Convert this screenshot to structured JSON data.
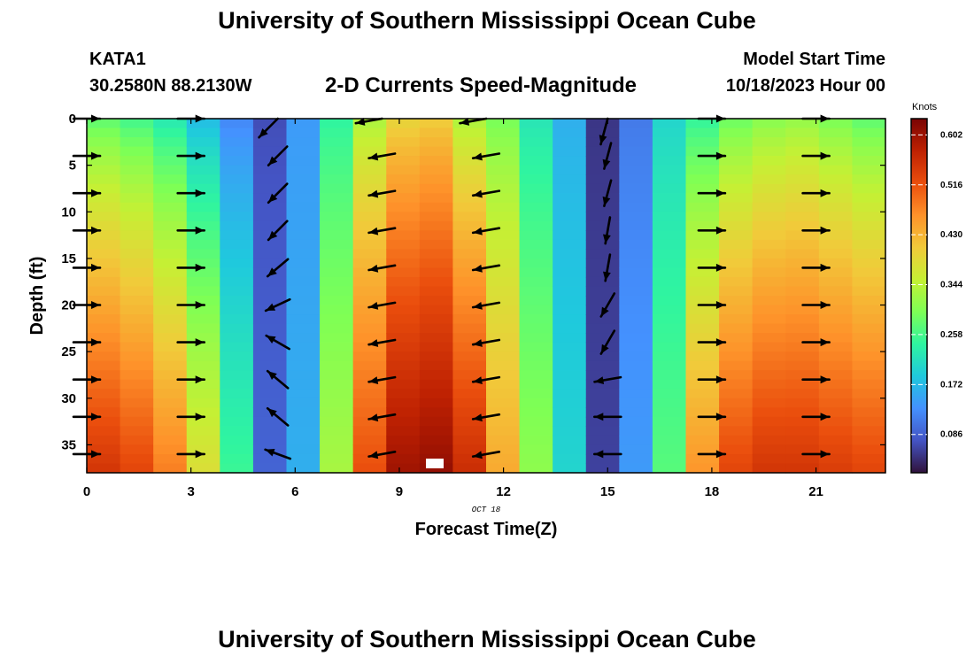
{
  "header": {
    "title": "University of Southern Mississippi Ocean Cube",
    "station": "KATA1",
    "coordinates": "30.2580N  88.2130W",
    "model_start_label": "Model Start Time",
    "model_start_value": "10/18/2023 Hour 00"
  },
  "footer": {
    "title": "University of Southern Mississippi Ocean Cube"
  },
  "chart_data": {
    "type": "heatmap",
    "title": "2-D Currents Speed-Magnitude",
    "xlabel": "Forecast Time(Z)",
    "ylabel": "Depth (ft)",
    "date_label": "OCT 18",
    "x_ticks": [
      0,
      3,
      6,
      9,
      12,
      15,
      18,
      21
    ],
    "y_ticks": [
      0,
      5,
      10,
      15,
      20,
      25,
      30,
      35
    ],
    "xlim": [
      0,
      23
    ],
    "ylim": [
      38,
      0
    ],
    "colorbar": {
      "label": "Knots",
      "ticks": [
        0.086,
        0.172,
        0.258,
        0.344,
        0.43,
        0.516,
        0.602
      ],
      "range": [
        0.02,
        0.63
      ],
      "colors": [
        "#30123b",
        "#4454c4",
        "#4491fe",
        "#1fc9dd",
        "#2ff5a0",
        "#7eff55",
        "#c5f034",
        "#f1ca3a",
        "#fe922a",
        "#ea4e0d",
        "#be2102",
        "#7a0403"
      ]
    },
    "hours": [
      0,
      1,
      2,
      3,
      4,
      5,
      6,
      7,
      8,
      9,
      10,
      11,
      12,
      13,
      14,
      15,
      16,
      17,
      18,
      19,
      20,
      21,
      22,
      23
    ],
    "surface_speed": [
      0.27,
      0.25,
      0.22,
      0.17,
      0.12,
      0.07,
      0.14,
      0.24,
      0.33,
      0.39,
      0.4,
      0.33,
      0.29,
      0.22,
      0.16,
      0.05,
      0.11,
      0.2,
      0.24,
      0.28,
      0.3,
      0.31,
      0.29,
      0.27
    ],
    "bottom_speed": [
      0.55,
      0.53,
      0.48,
      0.38,
      0.25,
      0.09,
      0.16,
      0.33,
      0.52,
      0.6,
      0.61,
      0.56,
      0.44,
      0.31,
      0.2,
      0.06,
      0.14,
      0.27,
      0.46,
      0.53,
      0.55,
      0.55,
      0.54,
      0.53
    ],
    "vectors": {
      "hours": [
        0,
        3,
        5.5,
        8.5,
        11.5,
        15,
        18,
        21
      ],
      "depths": [
        0,
        4,
        8,
        12,
        16,
        20,
        24,
        28,
        32,
        36
      ],
      "direction_deg": [
        [
          0,
          0,
          225,
          190,
          190,
          255,
          0,
          0
        ],
        [
          0,
          0,
          225,
          190,
          190,
          255,
          0,
          0
        ],
        [
          0,
          0,
          225,
          190,
          190,
          255,
          0,
          0
        ],
        [
          0,
          0,
          225,
          190,
          190,
          260,
          0,
          0
        ],
        [
          0,
          0,
          220,
          190,
          190,
          260,
          0,
          0
        ],
        [
          0,
          0,
          205,
          190,
          190,
          240,
          0,
          0
        ],
        [
          0,
          0,
          150,
          190,
          190,
          240,
          0,
          0
        ],
        [
          0,
          0,
          140,
          190,
          190,
          190,
          0,
          0
        ],
        [
          0,
          0,
          140,
          190,
          190,
          180,
          0,
          0
        ],
        [
          0,
          0,
          160,
          190,
          190,
          180,
          0,
          0
        ]
      ]
    }
  }
}
